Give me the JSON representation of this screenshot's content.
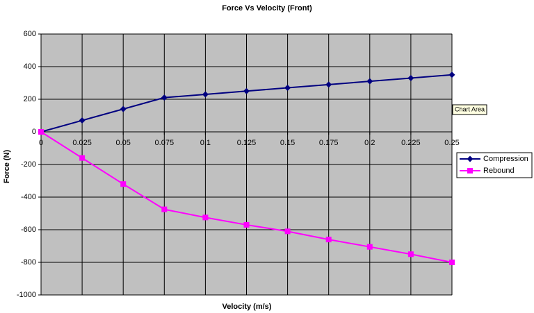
{
  "chart_data": {
    "type": "line",
    "title": "Force Vs Velocity (Front)",
    "x_label": "Velocity (m/s)",
    "y_label": "Force (N)",
    "x": [
      0,
      0.025,
      0.05,
      0.075,
      0.1,
      0.125,
      0.15,
      0.175,
      0.2,
      0.225,
      0.25
    ],
    "series": [
      {
        "name": "Compression",
        "color": "#000080",
        "marker": "diamond",
        "values": [
          0,
          70,
          140,
          210,
          230,
          250,
          270,
          290,
          310,
          330,
          350
        ]
      },
      {
        "name": "Rebound",
        "color": "#ff00ff",
        "marker": "square",
        "values": [
          0,
          -160,
          -320,
          -475,
          -525,
          -570,
          -610,
          -660,
          -705,
          -750,
          -800
        ]
      }
    ],
    "xlim": [
      0,
      0.25
    ],
    "xticks": [
      0,
      0.025,
      0.05,
      0.075,
      0.1,
      0.125,
      0.15,
      0.175,
      0.2,
      0.225,
      0.25
    ],
    "ylim": [
      -1000,
      600
    ],
    "yticks": [
      -1000,
      -800,
      -600,
      -400,
      -200,
      0,
      200,
      400,
      600
    ],
    "grid": true,
    "legend": "right",
    "tooltip": "Chart Area"
  }
}
